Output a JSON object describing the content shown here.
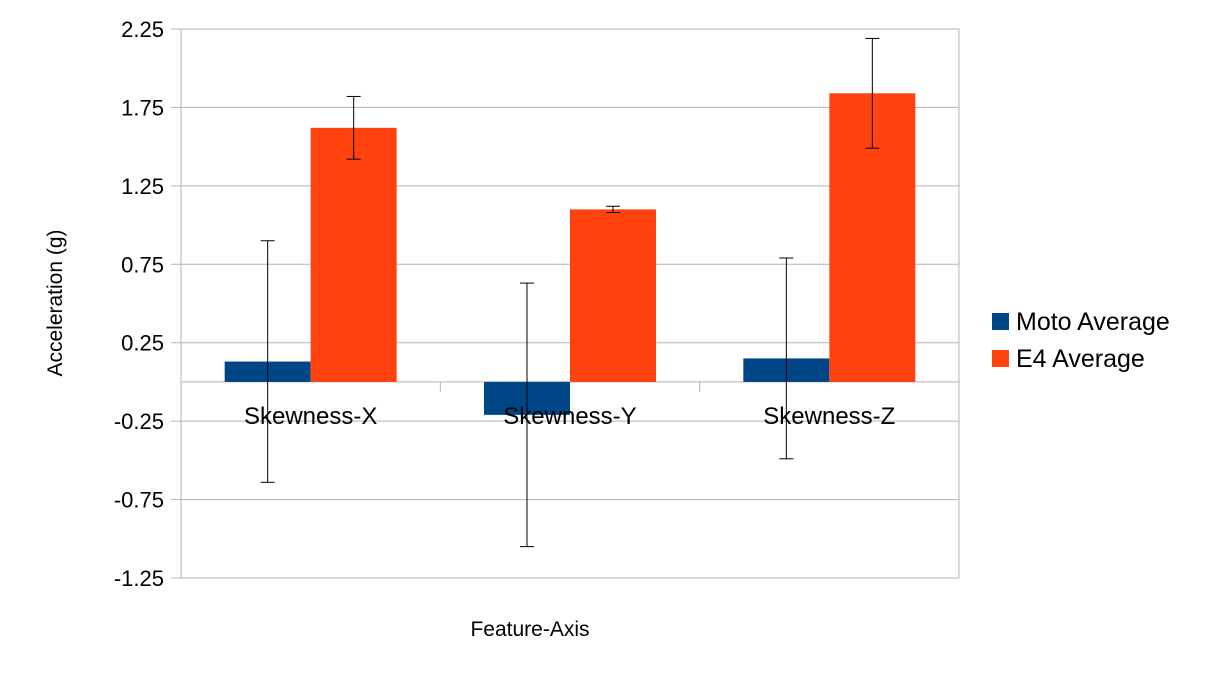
{
  "chart_data": {
    "type": "bar",
    "title": "",
    "xlabel": "Feature-Axis",
    "ylabel": "Acceleration (g)",
    "categories": [
      "Skewness-X",
      "Skewness-Y",
      "Skewness-Z"
    ],
    "ylim": [
      -1.25,
      2.25
    ],
    "yticks": [
      -1.25,
      -0.75,
      -0.25,
      0.25,
      0.75,
      1.25,
      1.75,
      2.25
    ],
    "ytick_labels": [
      "-1.25",
      "-0.75",
      "-0.25",
      "0.25",
      "0.75",
      "1.25",
      "1.75",
      "2.25"
    ],
    "grid": true,
    "legend_position": "right",
    "series": [
      {
        "name": "Moto Average",
        "color": "#004586",
        "values": [
          0.13,
          -0.21,
          0.15
        ],
        "error": [
          0.77,
          0.84,
          0.64
        ]
      },
      {
        "name": "E4 Average",
        "color": "#ff420e",
        "values": [
          1.62,
          1.1,
          1.84
        ],
        "error": [
          0.2,
          0.02,
          0.35
        ]
      }
    ]
  }
}
